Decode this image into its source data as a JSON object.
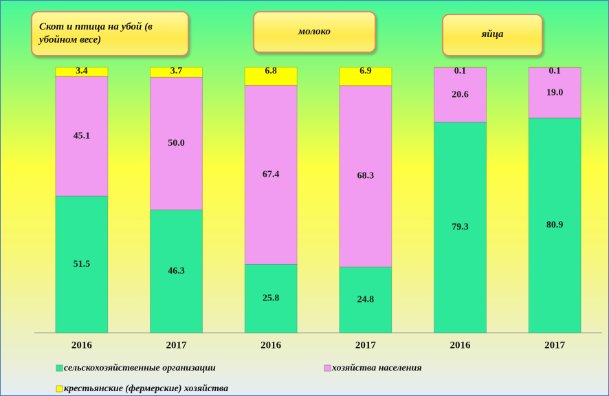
{
  "chart_data": {
    "type": "bar",
    "stacked": true,
    "groups": [
      "Скот и птица на убой (в убойном весе)",
      "молоко",
      "яйца"
    ],
    "categories": [
      "2016",
      "2017",
      "2016",
      "2017",
      "2016",
      "2017"
    ],
    "series": [
      {
        "name": "сельскохозяйственные организации",
        "color": "#2ee89a",
        "values": [
          51.5,
          46.3,
          25.8,
          24.8,
          79.3,
          80.9
        ],
        "value_labels": [
          "51.5",
          "46.3",
          "25.8",
          "24.8",
          "79.3",
          "80.9"
        ]
      },
      {
        "name": "хозяйства населения",
        "color": "#f19cf0",
        "values": [
          45.1,
          50.0,
          67.4,
          68.3,
          20.6,
          19.0
        ],
        "value_labels": [
          "45.1",
          "50.0",
          "67.4",
          "68.3",
          "20.6",
          "19.0"
        ]
      },
      {
        "name": "крестьянские (фермерские) хозяйства",
        "color": "#ffff00",
        "values": [
          3.4,
          3.7,
          6.8,
          6.9,
          0.1,
          0.1
        ],
        "value_labels": [
          "3.4",
          "3.7",
          "6.8",
          "6.9",
          "0.1",
          "0.1"
        ]
      }
    ]
  }
}
